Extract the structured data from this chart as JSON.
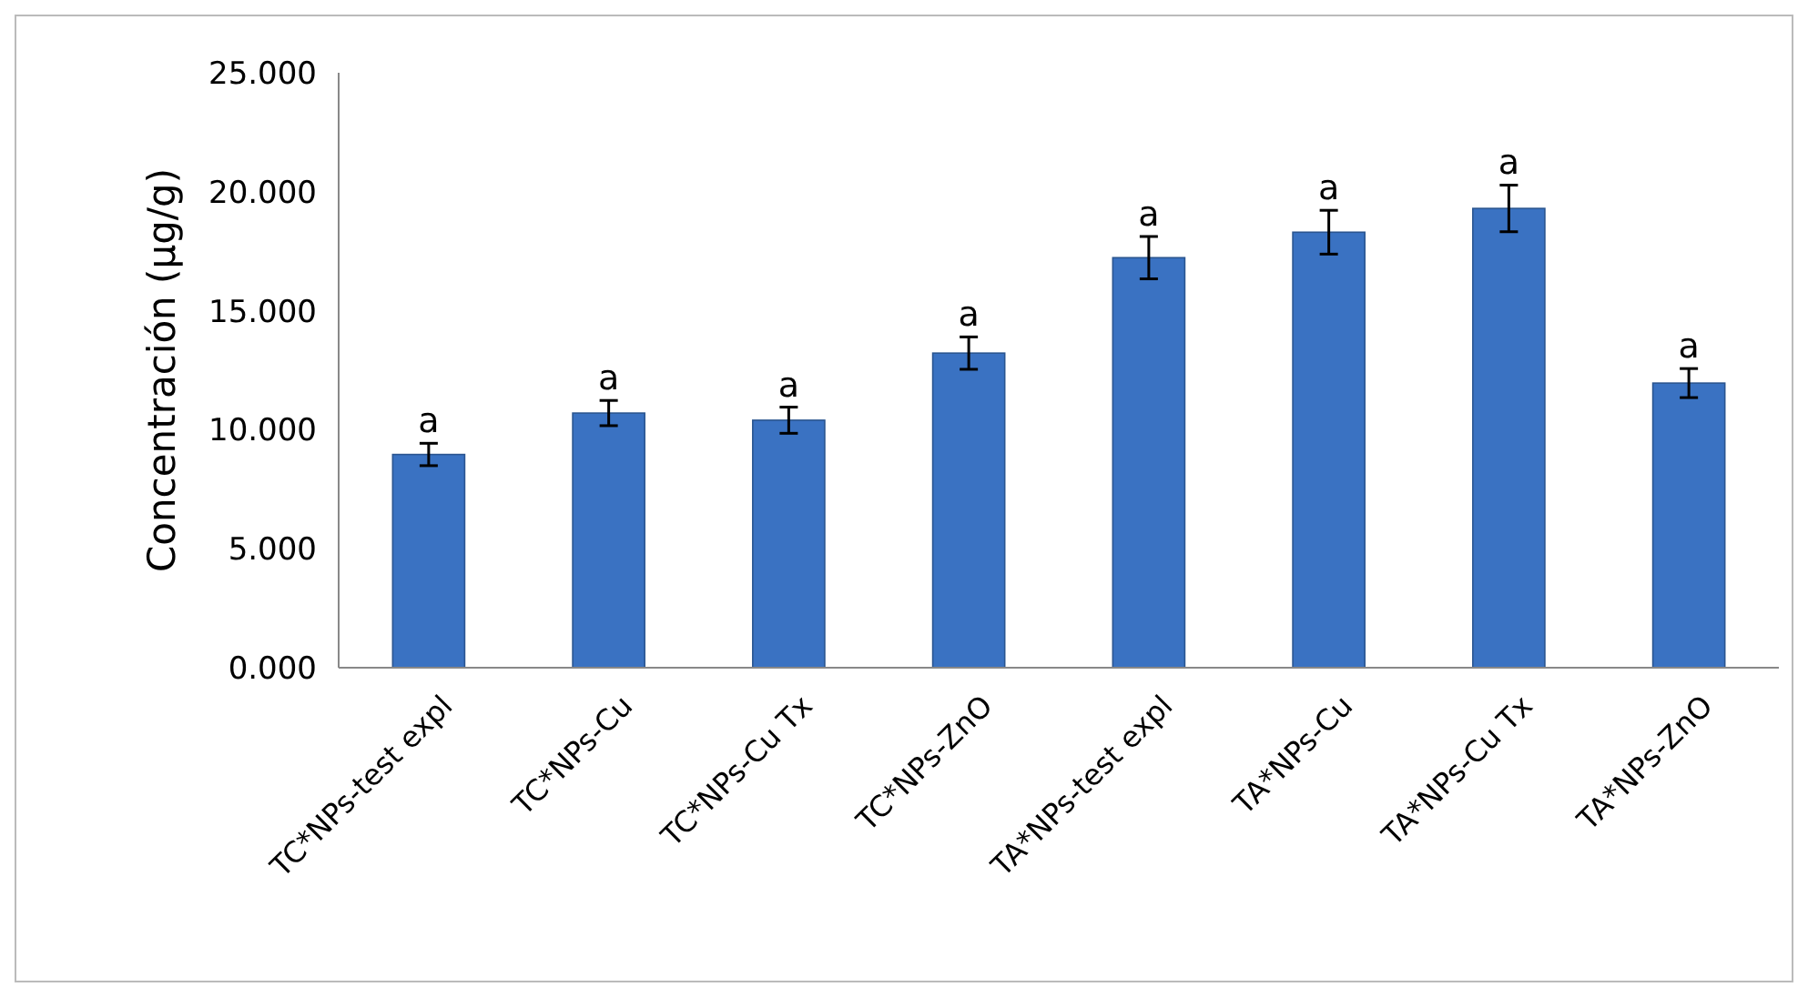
{
  "chart_data": {
    "type": "bar",
    "ylabel": "Concentración (µg/g)",
    "categories": [
      "TC*NPs-test expl",
      "TC*NPs-Cu",
      "TC*NPs-Cu Tx",
      "TC*NPs-ZnO",
      "TA*NPs-test expl",
      "TA*NPs-Cu",
      "TA*NPs-Cu Tx",
      "TA*NPs-ZnO"
    ],
    "values": [
      8.96,
      10.7,
      10.4,
      13.22,
      17.23,
      18.3,
      19.3,
      11.96
    ],
    "errors": [
      0.47,
      0.53,
      0.55,
      0.68,
      0.89,
      0.92,
      0.98,
      0.61
    ],
    "color": "#3a72c2",
    "ylim": [
      0,
      25
    ],
    "yticks": [
      {
        "value": 0,
        "label": "0.000"
      },
      {
        "value": 5,
        "label": "5.000"
      },
      {
        "value": 10,
        "label": "10.000"
      },
      {
        "value": 15,
        "label": "15.000"
      },
      {
        "value": 20,
        "label": "20.000"
      },
      {
        "value": 25,
        "label": "25.000"
      }
    ],
    "grid": false,
    "annotations": [
      {
        "text": "a",
        "x": "TC*NPs-test expl",
        "y": 8.96
      },
      {
        "text": "a",
        "x": "TC*NPs-Cu",
        "y": 10.7
      },
      {
        "text": "a",
        "x": "TC*NPs-Cu Tx",
        "y": 10.4
      },
      {
        "text": "a",
        "x": "TC*NPs-ZnO",
        "y": 13.22
      },
      {
        "text": "a",
        "x": "TA*NPs-test expl",
        "y": 17.23
      },
      {
        "text": "a",
        "x": "TA*NPs-Cu",
        "y": 18.3
      },
      {
        "text": "a",
        "x": "TA*NPs-Cu Tx",
        "y": 19.3
      },
      {
        "text": "a",
        "x": "TA*NPs-ZnO",
        "y": 11.96
      }
    ]
  }
}
